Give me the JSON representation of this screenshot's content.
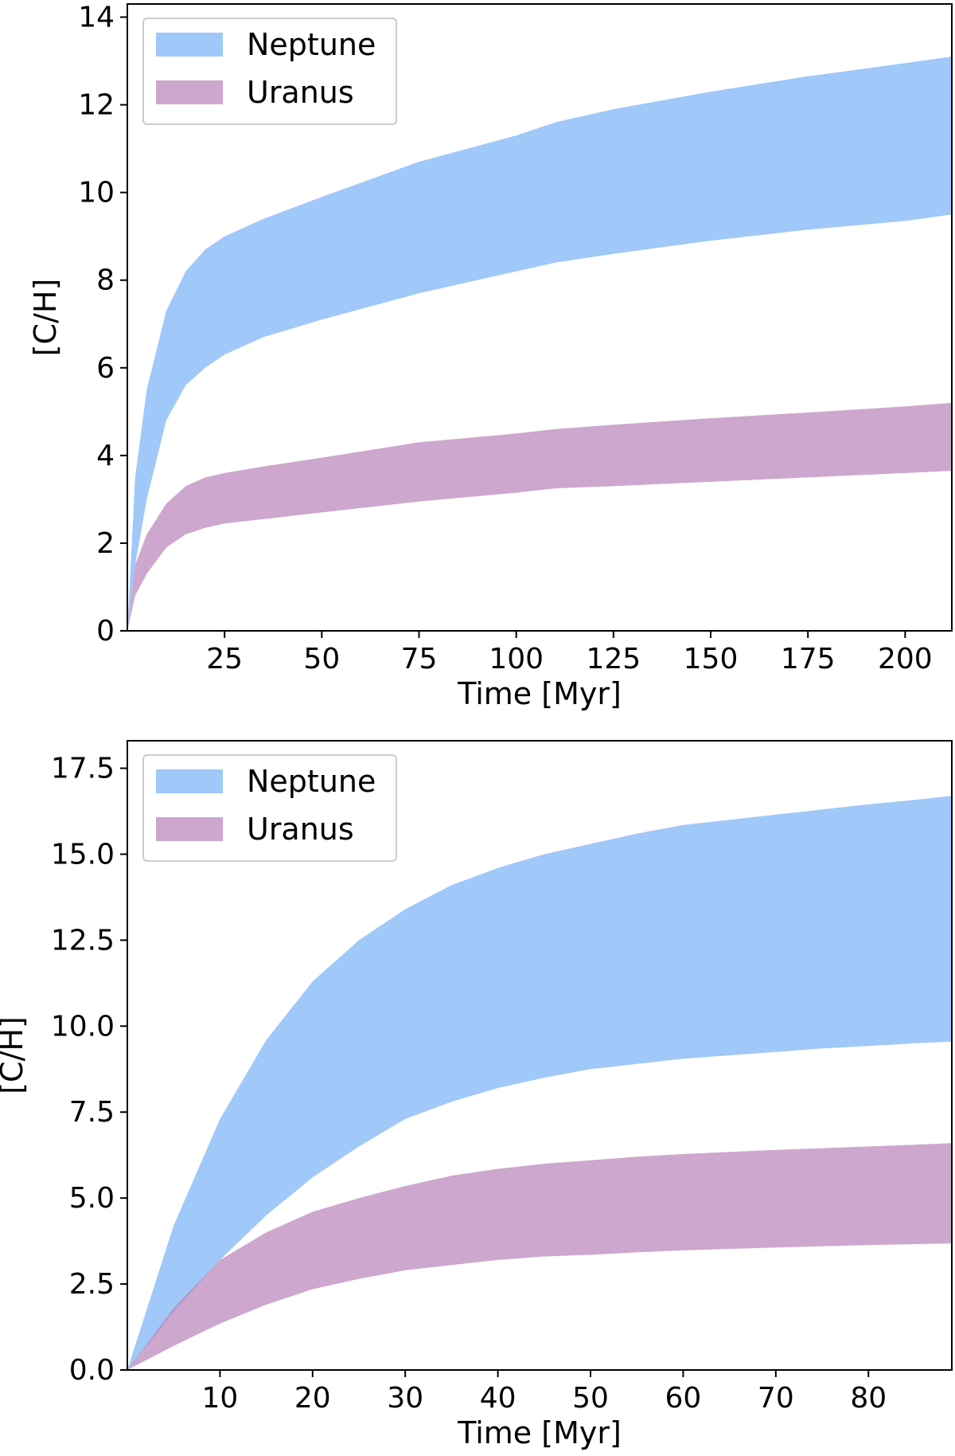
{
  "chart_data": [
    {
      "type": "area",
      "xlabel": "Time [Myr]",
      "ylabel": "[C/H]",
      "xlim": [
        0,
        212
      ],
      "ylim": [
        0,
        14.3
      ],
      "xticks": [
        25,
        50,
        75,
        100,
        125,
        150,
        175,
        200
      ],
      "xtick_labels": [
        "25",
        "50",
        "75",
        "100",
        "125",
        "150",
        "175",
        "200"
      ],
      "yticks": [
        0,
        2,
        4,
        6,
        8,
        10,
        12,
        14
      ],
      "ytick_labels": [
        "0",
        "2",
        "4",
        "6",
        "8",
        "10",
        "12",
        "14"
      ],
      "grid": false,
      "legend": "top-left",
      "series": [
        {
          "name": "Neptune",
          "color": "#a0c8f8",
          "x": [
            0,
            2,
            5,
            10,
            15,
            20,
            25,
            35,
            50,
            75,
            100,
            110,
            125,
            150,
            175,
            200,
            212
          ],
          "lower": [
            0,
            1.5,
            3.0,
            4.8,
            5.6,
            6.0,
            6.3,
            6.7,
            7.1,
            7.7,
            8.2,
            8.4,
            8.6,
            8.9,
            9.15,
            9.35,
            9.5
          ],
          "upper": [
            0,
            3.5,
            5.5,
            7.3,
            8.2,
            8.7,
            9.0,
            9.4,
            9.9,
            10.7,
            11.3,
            11.6,
            11.9,
            12.3,
            12.65,
            12.95,
            13.1
          ]
        },
        {
          "name": "Uranus",
          "color": "#b882b8",
          "x": [
            0,
            2,
            5,
            10,
            15,
            20,
            25,
            35,
            50,
            75,
            100,
            110,
            125,
            150,
            175,
            200,
            212
          ],
          "lower": [
            0,
            0.8,
            1.3,
            1.9,
            2.2,
            2.35,
            2.45,
            2.55,
            2.7,
            2.95,
            3.15,
            3.25,
            3.3,
            3.4,
            3.5,
            3.6,
            3.65
          ],
          "upper": [
            0,
            1.5,
            2.2,
            2.9,
            3.3,
            3.5,
            3.6,
            3.75,
            3.95,
            4.3,
            4.5,
            4.6,
            4.7,
            4.85,
            4.98,
            5.12,
            5.2
          ]
        }
      ],
      "overlap_color": "#b09ace"
    },
    {
      "type": "area",
      "xlabel": "Time [Myr]",
      "ylabel": "[C/H]",
      "xlim": [
        0,
        89
      ],
      "ylim": [
        0,
        18.3
      ],
      "xticks": [
        10,
        20,
        30,
        40,
        50,
        60,
        70,
        80
      ],
      "xtick_labels": [
        "10",
        "20",
        "30",
        "40",
        "50",
        "60",
        "70",
        "80"
      ],
      "yticks": [
        0,
        2.5,
        5.0,
        7.5,
        10.0,
        12.5,
        15.0,
        17.5
      ],
      "ytick_labels": [
        "0.0",
        "2.5",
        "5.0",
        "7.5",
        "10.0",
        "12.5",
        "15.0",
        "17.5"
      ],
      "grid": false,
      "legend": "top-left",
      "series": [
        {
          "name": "Neptune",
          "color": "#a0c8f8",
          "x": [
            0,
            5,
            10,
            15,
            20,
            25,
            30,
            35,
            40,
            45,
            50,
            55,
            60,
            65,
            70,
            75,
            80,
            85,
            89
          ],
          "lower": [
            0,
            1.7,
            3.2,
            4.5,
            5.6,
            6.5,
            7.3,
            7.8,
            8.2,
            8.5,
            8.75,
            8.9,
            9.05,
            9.15,
            9.25,
            9.35,
            9.42,
            9.5,
            9.55
          ],
          "upper": [
            0,
            4.2,
            7.3,
            9.6,
            11.3,
            12.5,
            13.4,
            14.1,
            14.6,
            15.0,
            15.3,
            15.6,
            15.85,
            16.0,
            16.15,
            16.3,
            16.45,
            16.58,
            16.7
          ]
        },
        {
          "name": "Uranus",
          "color": "#b882b8",
          "x": [
            0,
            5,
            10,
            15,
            20,
            25,
            30,
            35,
            40,
            45,
            50,
            55,
            60,
            65,
            70,
            75,
            80,
            85,
            89
          ],
          "lower": [
            0,
            0.7,
            1.35,
            1.9,
            2.35,
            2.65,
            2.9,
            3.05,
            3.2,
            3.3,
            3.35,
            3.42,
            3.48,
            3.52,
            3.56,
            3.6,
            3.63,
            3.66,
            3.68
          ],
          "upper": [
            0,
            1.8,
            3.2,
            4.0,
            4.6,
            5.0,
            5.35,
            5.65,
            5.85,
            6.0,
            6.1,
            6.2,
            6.28,
            6.34,
            6.4,
            6.45,
            6.5,
            6.55,
            6.6
          ]
        }
      ],
      "overlap_color": "#b09ace"
    }
  ]
}
